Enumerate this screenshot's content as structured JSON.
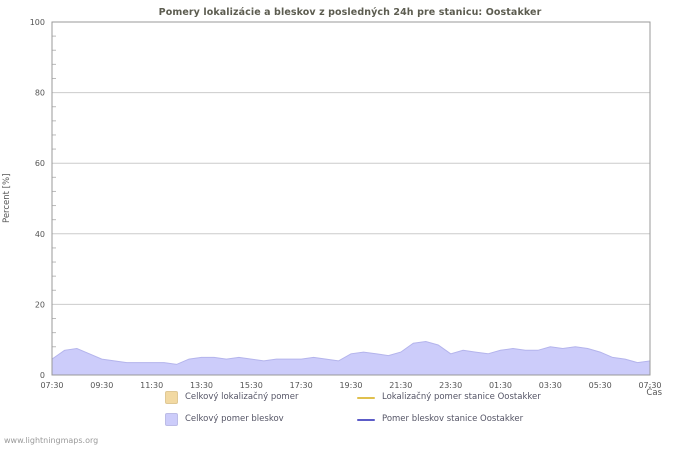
{
  "page": {
    "watermark": "www.lightningmaps.org"
  },
  "chart": {
    "title": "Pomery lokalizácie a bleskov z posledných 24h pre stanicu: Oostakker",
    "ylabel": "Percent [%]",
    "xlabel": "Čas"
  },
  "legend": {
    "items": [
      {
        "label": "Celkový lokalizačný pomer",
        "swatch": "box",
        "color": "#f2d9a2"
      },
      {
        "label": "Lokalizačný pomer stanice Oostakker",
        "swatch": "line",
        "color": "#e0c04e"
      },
      {
        "label": "Celkový pomer bleskov",
        "swatch": "box",
        "color": "#ccccfa"
      },
      {
        "label": "Pomer bleskov stanice Oostakker",
        "swatch": "line",
        "color": "#5c5cc8"
      }
    ]
  },
  "chart_data": {
    "type": "area",
    "title": "Pomery lokalizácie a bleskov z posledných 24h pre stanicu: Oostakker",
    "xlabel": "Čas",
    "ylabel": "Percent [%]",
    "ylim": [
      0,
      100
    ],
    "y_ticks": [
      0,
      20,
      40,
      60,
      80,
      100
    ],
    "grid": true,
    "legend_position": "bottom",
    "x": [
      "07:30",
      "08:00",
      "08:30",
      "09:00",
      "09:30",
      "10:00",
      "10:30",
      "11:00",
      "11:30",
      "12:00",
      "12:30",
      "13:00",
      "13:30",
      "14:00",
      "14:30",
      "15:00",
      "15:30",
      "16:00",
      "16:30",
      "17:00",
      "17:30",
      "18:00",
      "18:30",
      "19:00",
      "19:30",
      "20:00",
      "20:30",
      "21:00",
      "21:30",
      "22:00",
      "22:30",
      "23:00",
      "23:30",
      "00:00",
      "00:30",
      "01:00",
      "01:30",
      "02:00",
      "02:30",
      "03:00",
      "03:30",
      "04:00",
      "04:30",
      "05:00",
      "05:30",
      "06:00",
      "06:30",
      "07:00",
      "07:30"
    ],
    "x_tick_labels": [
      "07:30",
      "09:30",
      "11:30",
      "13:30",
      "15:30",
      "17:30",
      "19:30",
      "21:30",
      "23:30",
      "01:30",
      "03:30",
      "05:30",
      "07:30"
    ],
    "series": [
      {
        "name": "Celkový lokalizačný pomer",
        "type": "area",
        "color": "#f2d9a2",
        "values": []
      },
      {
        "name": "Lokalizačný pomer stanice Oostakker",
        "type": "line",
        "color": "#e0c04e",
        "values": []
      },
      {
        "name": "Celkový pomer bleskov",
        "type": "area",
        "color": "#ccccfa",
        "line_color": "#b4b4ec",
        "values": [
          4.5,
          7,
          7.5,
          6,
          4.5,
          4,
          3.5,
          3.5,
          3.5,
          3.5,
          3,
          4.5,
          5,
          5,
          4.5,
          5,
          4.5,
          4,
          4.5,
          4.5,
          4.5,
          5,
          4.5,
          4,
          6,
          6.5,
          6,
          5.5,
          6.5,
          9,
          9.5,
          8.5,
          6,
          7,
          6.5,
          6,
          7,
          7.5,
          7,
          7,
          8,
          7.5,
          8,
          7.5,
          6.5,
          5,
          4.5,
          3.5,
          4
        ]
      },
      {
        "name": "Pomer bleskov stanice Oostakker",
        "type": "line",
        "color": "#5c5cc8",
        "values": []
      }
    ]
  }
}
